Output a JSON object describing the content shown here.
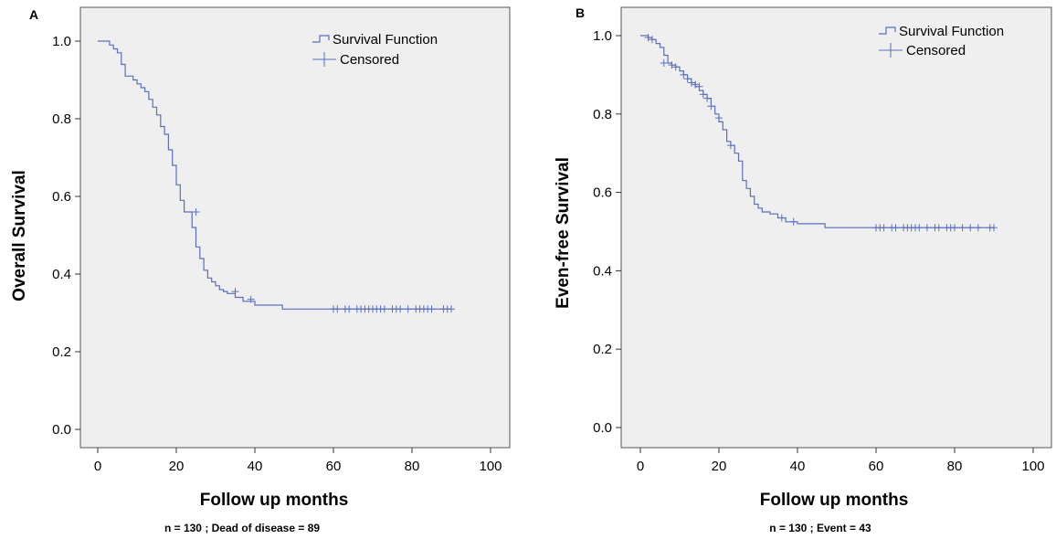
{
  "chart_data": [
    {
      "type": "line",
      "panel_label": "A",
      "xlabel": "Follow up months",
      "ylabel": "Overall Survival",
      "footnote": "n = 130 ; Dead of disease = 89",
      "xlim": [
        0,
        100
      ],
      "ylim": [
        0,
        1
      ],
      "xticks": [
        0,
        20,
        40,
        60,
        80,
        100
      ],
      "yticks": [
        0.0,
        0.2,
        0.4,
        0.6,
        0.8,
        1.0
      ],
      "xtick_labels": [
        "0",
        "20",
        "40",
        "60",
        "80",
        "100"
      ],
      "ytick_labels": [
        "0.0",
        "0.2",
        "0.4",
        "0.6",
        "0.8",
        "1.0"
      ],
      "grid": false,
      "background": "#efefef",
      "line_color": "#5a6fbf",
      "legend": {
        "position": "top-right",
        "entries": [
          "Survival Function",
          "Censored"
        ]
      },
      "series": [
        {
          "name": "Survival Function",
          "x": [
            0,
            3,
            4,
            5,
            6,
            7,
            9,
            10,
            11,
            12,
            13,
            14,
            15,
            16,
            17,
            18,
            19,
            20,
            21,
            22,
            23,
            24,
            25,
            26,
            27,
            28,
            29,
            30,
            31,
            32,
            33,
            35,
            37,
            40,
            47,
            90
          ],
          "y": [
            1.0,
            0.99,
            0.98,
            0.97,
            0.94,
            0.91,
            0.9,
            0.89,
            0.88,
            0.87,
            0.85,
            0.83,
            0.81,
            0.78,
            0.76,
            0.72,
            0.68,
            0.63,
            0.59,
            0.56,
            0.56,
            0.52,
            0.47,
            0.44,
            0.41,
            0.39,
            0.38,
            0.37,
            0.36,
            0.355,
            0.35,
            0.34,
            0.33,
            0.32,
            0.31,
            0.31
          ]
        },
        {
          "name": "Censored",
          "x": [
            25,
            35,
            39,
            60,
            61,
            63,
            64,
            66,
            67,
            68,
            69,
            70,
            71,
            72,
            73,
            75,
            76,
            77,
            79,
            81,
            82,
            83,
            84,
            85,
            88,
            89,
            90
          ],
          "y": [
            0.56,
            0.355,
            0.335,
            0.31,
            0.31,
            0.31,
            0.31,
            0.31,
            0.31,
            0.31,
            0.31,
            0.31,
            0.31,
            0.31,
            0.31,
            0.31,
            0.31,
            0.31,
            0.31,
            0.31,
            0.31,
            0.31,
            0.31,
            0.31,
            0.31,
            0.31,
            0.31
          ]
        }
      ]
    },
    {
      "type": "line",
      "panel_label": "B",
      "xlabel": "Follow up months",
      "ylabel": "Even-free Survival",
      "footnote": "n = 130 ; Event = 43",
      "xlim": [
        0,
        100
      ],
      "ylim": [
        0,
        1
      ],
      "xticks": [
        0,
        20,
        40,
        60,
        80,
        100
      ],
      "yticks": [
        0.0,
        0.2,
        0.4,
        0.6,
        0.8,
        1.0
      ],
      "xtick_labels": [
        "0",
        "20",
        "40",
        "60",
        "80",
        "100"
      ],
      "ytick_labels": [
        "0.0",
        "0.2",
        "0.4",
        "0.6",
        "0.8",
        "1.0"
      ],
      "grid": false,
      "background": "#efefef",
      "line_color": "#5a6fbf",
      "legend": {
        "position": "top-right",
        "entries": [
          "Survival Function",
          "Censored"
        ]
      },
      "series": [
        {
          "name": "Survival Function",
          "x": [
            0,
            2,
            3,
            4,
            5,
            6,
            7,
            8,
            9,
            10,
            11,
            12,
            13,
            14,
            15,
            16,
            17,
            18,
            19,
            20,
            21,
            22,
            23,
            24,
            25,
            26,
            27,
            28,
            29,
            30,
            31,
            33,
            35,
            37,
            40,
            47,
            90
          ],
          "y": [
            1.0,
            0.995,
            0.99,
            0.98,
            0.97,
            0.95,
            0.93,
            0.925,
            0.92,
            0.91,
            0.9,
            0.89,
            0.88,
            0.87,
            0.86,
            0.85,
            0.84,
            0.82,
            0.8,
            0.78,
            0.76,
            0.73,
            0.72,
            0.7,
            0.68,
            0.63,
            0.61,
            0.59,
            0.57,
            0.56,
            0.55,
            0.545,
            0.535,
            0.525,
            0.52,
            0.51,
            0.51
          ]
        },
        {
          "name": "Censored",
          "x": [
            2,
            3,
            6,
            8,
            9,
            11,
            12,
            13,
            14,
            15,
            16,
            17,
            18,
            20,
            23,
            36,
            39,
            60,
            61,
            62,
            64,
            65,
            67,
            68,
            69,
            70,
            71,
            73,
            75,
            76,
            78,
            79,
            80,
            82,
            84,
            86,
            89,
            90
          ],
          "y": [
            0.995,
            0.99,
            0.93,
            0.925,
            0.92,
            0.9,
            0.89,
            0.88,
            0.875,
            0.87,
            0.85,
            0.84,
            0.82,
            0.79,
            0.72,
            0.535,
            0.525,
            0.51,
            0.51,
            0.51,
            0.51,
            0.51,
            0.51,
            0.51,
            0.51,
            0.51,
            0.51,
            0.51,
            0.51,
            0.51,
            0.51,
            0.51,
            0.51,
            0.51,
            0.51,
            0.51,
            0.51,
            0.51
          ]
        }
      ]
    }
  ]
}
